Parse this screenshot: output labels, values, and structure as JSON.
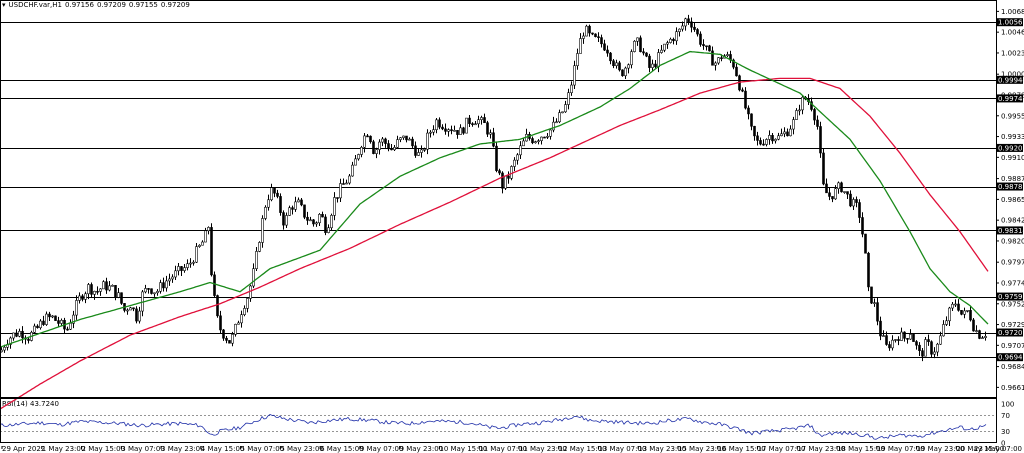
{
  "header": {
    "symbol": "USDCHF.var,H1",
    "open": "0.97156",
    "high": "0.97209",
    "low": "0.97155",
    "close": "0.97209"
  },
  "rsi_header": {
    "label": "RSI(14)",
    "value": "43.7240"
  },
  "colors": {
    "candle": "#000000",
    "ma_fast": "#1a8a1a",
    "ma_slow": "#e0103a",
    "rsi": "#1e2ea8",
    "hline": "#000000",
    "price_tag_bg": "#000000",
    "price_tag_fg": "#ffffff"
  },
  "chart_data": [
    {
      "type": "candlestick",
      "symbol": "USDCHF.var",
      "timeframe": "H1",
      "ylim": [
        0.965,
        1.007
      ],
      "y_ticks": [
        "1.00685",
        "1.00460",
        "1.00235",
        "1.00005",
        "0.99780",
        "0.99555",
        "0.99330",
        "0.99105",
        "0.98875",
        "0.98650",
        "0.98425",
        "0.98200",
        "0.97970",
        "0.97745",
        "0.97520",
        "0.97295",
        "0.97070",
        "0.96840",
        "0.96615"
      ],
      "x_ticks": [
        "29 Apr 2022",
        "1 May 23:00",
        "2 May 15:00",
        "3 May 07:00",
        "3 May 23:00",
        "4 May 15:00",
        "5 May 07:00",
        "5 May 23:00",
        "6 May 15:00",
        "9 May 07:00",
        "9 May 23:00",
        "10 May 15:00",
        "11 May 07:00",
        "11 May 23:00",
        "12 May 15:00",
        "13 May 07:00",
        "13 May 23:00",
        "15 May 23:00",
        "16 May 15:00",
        "17 May 07:00",
        "17 May 23:00",
        "18 May 15:00",
        "19 May 07:00",
        "19 May 23:00",
        "20 May 15:00",
        "23 May 07:00"
      ],
      "horizontal_levels": [
        "1.00568",
        "0.99944",
        "0.99743",
        "0.99207",
        "0.98789",
        "0.98314",
        "0.97598",
        "0.97209",
        "0.96942"
      ],
      "current_price": "0.97209",
      "close_path": [
        [
          0,
          0.97
        ],
        [
          6,
          0.9712
        ],
        [
          12,
          0.9718
        ],
        [
          20,
          0.9722
        ],
        [
          28,
          0.9716
        ],
        [
          36,
          0.9724
        ],
        [
          44,
          0.9736
        ],
        [
          52,
          0.9737
        ],
        [
          60,
          0.973
        ],
        [
          66,
          0.9722
        ],
        [
          72,
          0.974
        ],
        [
          80,
          0.976
        ],
        [
          88,
          0.977
        ],
        [
          96,
          0.9765
        ],
        [
          104,
          0.9772
        ],
        [
          112,
          0.9768
        ],
        [
          118,
          0.976
        ],
        [
          124,
          0.9745
        ],
        [
          130,
          0.9752
        ],
        [
          136,
          0.9738
        ],
        [
          142,
          0.9762
        ],
        [
          148,
          0.977
        ],
        [
          156,
          0.9765
        ],
        [
          164,
          0.9775
        ],
        [
          172,
          0.9782
        ],
        [
          180,
          0.9788
        ],
        [
          188,
          0.9793
        ],
        [
          196,
          0.9808
        ],
        [
          204,
          0.9822
        ],
        [
          208,
          0.9836
        ],
        [
          212,
          0.977
        ],
        [
          218,
          0.9728
        ],
        [
          224,
          0.9718
        ],
        [
          230,
          0.971
        ],
        [
          236,
          0.9728
        ],
        [
          242,
          0.9748
        ],
        [
          248,
          0.9762
        ],
        [
          254,
          0.979
        ],
        [
          260,
          0.983
        ],
        [
          266,
          0.9865
        ],
        [
          272,
          0.9876
        ],
        [
          278,
          0.986
        ],
        [
          284,
          0.9838
        ],
        [
          290,
          0.9858
        ],
        [
          298,
          0.986
        ],
        [
          306,
          0.9845
        ],
        [
          314,
          0.9838
        ],
        [
          320,
          0.985
        ],
        [
          326,
          0.9832
        ],
        [
          334,
          0.9865
        ],
        [
          342,
          0.988
        ],
        [
          350,
          0.989
        ],
        [
          356,
          0.991
        ],
        [
          362,
          0.993
        ],
        [
          368,
          0.994
        ],
        [
          374,
          0.9915
        ],
        [
          380,
          0.993
        ],
        [
          386,
          0.9925
        ],
        [
          392,
          0.9918
        ],
        [
          398,
          0.9928
        ],
        [
          406,
          0.9932
        ],
        [
          414,
          0.992
        ],
        [
          420,
          0.991
        ],
        [
          428,
          0.9935
        ],
        [
          436,
          0.995
        ],
        [
          444,
          0.9945
        ],
        [
          452,
          0.9942
        ],
        [
          460,
          0.9938
        ],
        [
          468,
          0.995
        ],
        [
          476,
          0.9952
        ],
        [
          484,
          0.9946
        ],
        [
          490,
          0.9934
        ],
        [
          496,
          0.99
        ],
        [
          502,
          0.988
        ],
        [
          508,
          0.989
        ],
        [
          514,
          0.9905
        ],
        [
          520,
          0.992
        ],
        [
          526,
          0.9932
        ],
        [
          534,
          0.993
        ],
        [
          542,
          0.9935
        ],
        [
          550,
          0.994
        ],
        [
          558,
          0.9952
        ],
        [
          566,
          0.9968
        ],
        [
          572,
          0.9995
        ],
        [
          578,
          1.003
        ],
        [
          584,
          1.005
        ],
        [
          590,
          1.004
        ],
        [
          598,
          1.0036
        ],
        [
          606,
          1.003
        ],
        [
          614,
          1.0012
        ],
        [
          620,
          1.0
        ],
        [
          626,
          1.001
        ],
        [
          632,
          1.003
        ],
        [
          638,
          1.0035
        ],
        [
          644,
          1.002
        ],
        [
          650,
          1.0005
        ],
        [
          656,
          1.0015
        ],
        [
          664,
          1.003
        ],
        [
          672,
          1.004
        ],
        [
          680,
          1.0048
        ],
        [
          686,
          1.0062
        ],
        [
          692,
          1.0055
        ],
        [
          698,
          1.004
        ],
        [
          704,
          1.003
        ],
        [
          710,
          1.0018
        ],
        [
          716,
          1.0012
        ],
        [
          722,
          1.0022
        ],
        [
          728,
          1.0018
        ],
        [
          734,
          1.001
        ],
        [
          740,
          0.9985
        ],
        [
          746,
          0.996
        ],
        [
          752,
          0.9935
        ],
        [
          758,
          0.9925
        ],
        [
          764,
          0.993
        ],
        [
          770,
          0.9935
        ],
        [
          778,
          0.9932
        ],
        [
          786,
          0.9938
        ],
        [
          794,
          0.995
        ],
        [
          800,
          0.997
        ],
        [
          806,
          0.9975
        ],
        [
          812,
          0.9965
        ],
        [
          818,
          0.994
        ],
        [
          822,
          0.988
        ],
        [
          828,
          0.9868
        ],
        [
          834,
          0.9872
        ],
        [
          840,
          0.988
        ],
        [
          846,
          0.987
        ],
        [
          852,
          0.986
        ],
        [
          858,
          0.9855
        ],
        [
          864,
          0.9815
        ],
        [
          868,
          0.9765
        ],
        [
          874,
          0.975
        ],
        [
          880,
          0.972
        ],
        [
          886,
          0.9705
        ],
        [
          892,
          0.9712
        ],
        [
          898,
          0.9718
        ],
        [
          904,
          0.9715
        ],
        [
          910,
          0.9722
        ],
        [
          916,
          0.9705
        ],
        [
          920,
          0.9695
        ],
        [
          926,
          0.971
        ],
        [
          932,
          0.97
        ],
        [
          938,
          0.9708
        ],
        [
          944,
          0.973
        ],
        [
          950,
          0.9745
        ],
        [
          956,
          0.9755
        ],
        [
          962,
          0.9738
        ],
        [
          968,
          0.9745
        ],
        [
          974,
          0.9725
        ],
        [
          980,
          0.9718
        ],
        [
          986,
          0.9721
        ]
      ],
      "ma_fast_path": [
        [
          0,
          0.9705
        ],
        [
          40,
          0.972
        ],
        [
          80,
          0.9735
        ],
        [
          130,
          0.975
        ],
        [
          180,
          0.9765
        ],
        [
          210,
          0.9775
        ],
        [
          240,
          0.9765
        ],
        [
          270,
          0.979
        ],
        [
          320,
          0.981
        ],
        [
          360,
          0.986
        ],
        [
          400,
          0.989
        ],
        [
          440,
          0.991
        ],
        [
          480,
          0.9925
        ],
        [
          520,
          0.993
        ],
        [
          560,
          0.9945
        ],
        [
          600,
          0.9965
        ],
        [
          630,
          0.9985
        ],
        [
          660,
          1.001
        ],
        [
          690,
          1.0025
        ],
        [
          720,
          1.0022
        ],
        [
          750,
          1.0005
        ],
        [
          780,
          0.999
        ],
        [
          800,
          0.998
        ],
        [
          820,
          0.996
        ],
        [
          850,
          0.993
        ],
        [
          880,
          0.9885
        ],
        [
          910,
          0.983
        ],
        [
          930,
          0.979
        ],
        [
          950,
          0.9765
        ],
        [
          970,
          0.975
        ],
        [
          988,
          0.973
        ]
      ],
      "ma_slow_path": [
        [
          0,
          0.9638
        ],
        [
          40,
          0.9665
        ],
        [
          80,
          0.969
        ],
        [
          130,
          0.9718
        ],
        [
          180,
          0.9738
        ],
        [
          220,
          0.9752
        ],
        [
          260,
          0.977
        ],
        [
          300,
          0.979
        ],
        [
          350,
          0.9812
        ],
        [
          400,
          0.9838
        ],
        [
          450,
          0.9862
        ],
        [
          500,
          0.9888
        ],
        [
          550,
          0.991
        ],
        [
          580,
          0.9925
        ],
        [
          620,
          0.9945
        ],
        [
          660,
          0.9962
        ],
        [
          700,
          0.998
        ],
        [
          740,
          0.9992
        ],
        [
          780,
          0.9996
        ],
        [
          810,
          0.9996
        ],
        [
          840,
          0.9985
        ],
        [
          870,
          0.9955
        ],
        [
          900,
          0.9915
        ],
        [
          930,
          0.987
        ],
        [
          960,
          0.983
        ],
        [
          988,
          0.9787
        ]
      ]
    },
    {
      "type": "line",
      "name": "RSI(14)",
      "ylim": [
        0,
        100
      ],
      "y_ticks": [
        "100",
        "70",
        "30",
        "0"
      ],
      "levels": [
        70,
        30
      ],
      "values_path": [
        [
          0,
          45
        ],
        [
          20,
          48
        ],
        [
          40,
          52
        ],
        [
          60,
          47
        ],
        [
          80,
          55
        ],
        [
          100,
          53
        ],
        [
          120,
          50
        ],
        [
          140,
          45
        ],
        [
          160,
          48
        ],
        [
          180,
          50
        ],
        [
          200,
          45
        ],
        [
          212,
          20
        ],
        [
          220,
          30
        ],
        [
          240,
          40
        ],
        [
          260,
          62
        ],
        [
          270,
          70
        ],
        [
          290,
          60
        ],
        [
          310,
          52
        ],
        [
          330,
          58
        ],
        [
          350,
          62
        ],
        [
          370,
          58
        ],
        [
          390,
          52
        ],
        [
          410,
          50
        ],
        [
          430,
          56
        ],
        [
          450,
          55
        ],
        [
          470,
          52
        ],
        [
          490,
          40
        ],
        [
          500,
          38
        ],
        [
          520,
          48
        ],
        [
          540,
          52
        ],
        [
          560,
          60
        ],
        [
          575,
          70
        ],
        [
          590,
          58
        ],
        [
          610,
          55
        ],
        [
          630,
          52
        ],
        [
          650,
          50
        ],
        [
          670,
          58
        ],
        [
          690,
          62
        ],
        [
          700,
          55
        ],
        [
          720,
          48
        ],
        [
          740,
          35
        ],
        [
          750,
          25
        ],
        [
          770,
          30
        ],
        [
          790,
          35
        ],
        [
          810,
          45
        ],
        [
          820,
          18
        ],
        [
          830,
          25
        ],
        [
          850,
          25
        ],
        [
          866,
          20
        ],
        [
          872,
          15
        ],
        [
          880,
          12
        ],
        [
          900,
          20
        ],
        [
          920,
          18
        ],
        [
          940,
          30
        ],
        [
          960,
          40
        ],
        [
          970,
          35
        ],
        [
          986,
          44
        ]
      ]
    }
  ]
}
